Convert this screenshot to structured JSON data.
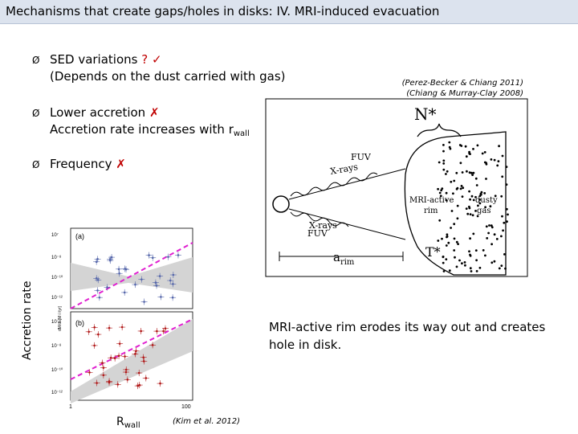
{
  "slide": {
    "title": "Mechanisms that create gaps/holes in disks:  IV.  MRI-induced evacuation"
  },
  "bullets": [
    {
      "label": "SED variations",
      "mark": "? ✓",
      "detail": "(Depends on the dust carried with gas)"
    },
    {
      "label": "Lower accretion",
      "mark": "✗",
      "detail": "Accretion rate increases with r",
      "detail_sub": "wall"
    },
    {
      "label": "Frequency",
      "mark": "✗"
    }
  ],
  "bullet_marker": "Ø",
  "references": {
    "top_right": [
      "(Perez-Becker & Chiang 2011)",
      "(Chiang & Murray-Clay 2008)"
    ],
    "bottom_plot": "(Kim et al.  2012)"
  },
  "diagram": {
    "n_star": "N*",
    "t_star": "T*",
    "fuv_top": "FUV",
    "xrays_top": "X-rays",
    "xrays_bottom": "X-rays",
    "fuv_bottom": "FUV",
    "mri_label_1": "MRI-active",
    "mri_label_2": "rim",
    "dusty_label_1": "dusty",
    "dusty_label_2": "gas",
    "a_label": "a",
    "a_sub": "rim"
  },
  "plot": {
    "ylabel": "Accretion rate",
    "xlabel": "R",
    "xlabel_sub": "wall",
    "panel_a": "(a)",
    "panel_b": "(b)",
    "yaxis_units": "dM/dt [M☉/yr]",
    "x_tick_min": "1",
    "x_tick_max": "100",
    "y_ticks_a": [
      "10⁷",
      "10⁻⁸",
      "10⁻¹⁰",
      "10⁻¹²"
    ],
    "y_ticks_b": [
      "10⁻⁶",
      "10⁻⁸",
      "10⁻¹⁰",
      "10⁻¹²"
    ],
    "trend_line_color": "#e020d0",
    "panel_a_point_color": "#5566aa",
    "panel_b_point_color": "#b01818"
  },
  "caption": "MRI-active rim erodes its way out and creates hole in disk."
}
